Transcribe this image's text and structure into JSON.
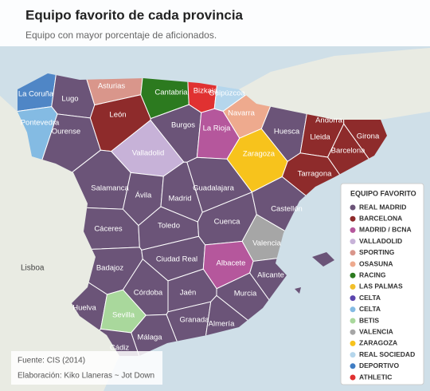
{
  "header": {
    "title": "Equipo favorito de cada provincia",
    "subtitle": "Equipo con mayor porcentaje de aficionados."
  },
  "legend": {
    "title": "EQUIPO FAVORITO",
    "items": [
      {
        "label": "REAL MADRID",
        "color": "#6b5478"
      },
      {
        "label": "BARCELONA",
        "color": "#8e2b2b"
      },
      {
        "label": "MADRID / BCNA",
        "color": "#b5579c"
      },
      {
        "label": "VALLADOLID",
        "color": "#c7b2d8"
      },
      {
        "label": "SPORTING",
        "color": "#d9968b"
      },
      {
        "label": "OSASUNA",
        "color": "#eeaa8e"
      },
      {
        "label": "RACING",
        "color": "#2c7a1f"
      },
      {
        "label": "LAS PALMAS",
        "color": "#f2bf2a"
      },
      {
        "label": "CELTA",
        "color": "#5b45ad"
      },
      {
        "label": "CELTA",
        "color": "#84bbe3"
      },
      {
        "label": "BETIS",
        "color": "#a9d89c"
      },
      {
        "label": "VALENCIA",
        "color": "#a6a6a6"
      },
      {
        "label": "ZARAGOZA",
        "color": "#f7c31c"
      },
      {
        "label": "REAL SOCIEDAD",
        "color": "#b5d6ec"
      },
      {
        "label": "DEPORTIVO",
        "color": "#3f7dc4"
      },
      {
        "label": "ATHLETIC",
        "color": "#e03131"
      }
    ]
  },
  "provinces": [
    {
      "name": "La Coruña",
      "color": "#4f86c6"
    },
    {
      "name": "Lugo",
      "color": "#6b5478"
    },
    {
      "name": "Pontevedra",
      "color": "#84bbe3"
    },
    {
      "name": "Ourense",
      "color": "#6b5478"
    },
    {
      "name": "Asturias",
      "color": "#d9968b"
    },
    {
      "name": "León",
      "color": "#8e2b2b"
    },
    {
      "name": "Cantabria",
      "color": "#2c7a1f"
    },
    {
      "name": "Bizkaia",
      "color": "#e03131"
    },
    {
      "name": "Guipúzcoa",
      "color": "#b5d6ec"
    },
    {
      "name": "Navarra",
      "color": "#eeaa8e"
    },
    {
      "name": "Burgos",
      "color": "#6b5478"
    },
    {
      "name": "La Rioja",
      "color": "#b5579c"
    },
    {
      "name": "Valladolid",
      "color": "#c7b2d8"
    },
    {
      "name": "Zaragoza",
      "color": "#f7c31c"
    },
    {
      "name": "Huesca",
      "color": "#6b5478"
    },
    {
      "name": "Lleida",
      "color": "#8e2b2b"
    },
    {
      "name": "Girona",
      "color": "#8e2b2b"
    },
    {
      "name": "Barcelona",
      "color": "#8e2b2b"
    },
    {
      "name": "Tarragona",
      "color": "#8e2b2b"
    },
    {
      "name": "Salamanca",
      "color": "#6b5478"
    },
    {
      "name": "Ávila",
      "color": "#6b5478"
    },
    {
      "name": "Madrid",
      "color": "#6b5478"
    },
    {
      "name": "Guadalajara",
      "color": "#6b5478"
    },
    {
      "name": "Cáceres",
      "color": "#6b5478"
    },
    {
      "name": "Toledo",
      "color": "#6b5478"
    },
    {
      "name": "Cuenca",
      "color": "#6b5478"
    },
    {
      "name": "Castellón",
      "color": "#6b5478"
    },
    {
      "name": "Valencia",
      "color": "#a6a6a6"
    },
    {
      "name": "Badajoz",
      "color": "#6b5478"
    },
    {
      "name": "Ciudad Real",
      "color": "#6b5478"
    },
    {
      "name": "Albacete",
      "color": "#b5579c"
    },
    {
      "name": "Alicante",
      "color": "#6b5478"
    },
    {
      "name": "Córdoba",
      "color": "#6b5478"
    },
    {
      "name": "Jaén",
      "color": "#6b5478"
    },
    {
      "name": "Murcia",
      "color": "#6b5478"
    },
    {
      "name": "Huelva",
      "color": "#6b5478"
    },
    {
      "name": "Sevilla",
      "color": "#a9d89c"
    },
    {
      "name": "Granada",
      "color": "#6b5478"
    },
    {
      "name": "Almería",
      "color": "#6b5478"
    },
    {
      "name": "Málaga",
      "color": "#6b5478"
    },
    {
      "name": "Cádiz",
      "color": "#6b5478"
    }
  ],
  "places": [
    "Lisboa",
    "Andorra"
  ],
  "footer": {
    "source": "Fuente: CIS (2014)",
    "credit": "Elaboración: Kiko Llaneras ~ Jot Down"
  }
}
